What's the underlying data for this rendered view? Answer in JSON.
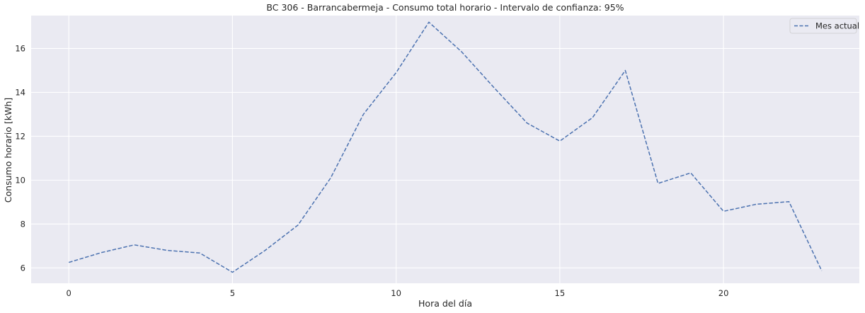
{
  "chart_data": {
    "type": "line",
    "title": "BC 306 - Barrancabermeja - Consumo total horario - Intervalo de confianza: 95%",
    "xlabel": "Hora del día",
    "ylabel": "Consumo horario [kWh]",
    "xlim": [
      -1.15,
      24.15
    ],
    "ylim": [
      5.3,
      17.5
    ],
    "xticks": [
      0,
      5,
      10,
      15,
      20
    ],
    "yticks": [
      6,
      8,
      10,
      12,
      14,
      16
    ],
    "grid": true,
    "legend_position": "top-right",
    "background": "#eaeaf2",
    "series": [
      {
        "name": "Mes actual",
        "color": "#4c72b0",
        "line_style": "dashed",
        "x": [
          0,
          1,
          2,
          3,
          4,
          5,
          6,
          7,
          8,
          9,
          10,
          11,
          12,
          13,
          14,
          15,
          16,
          17,
          18,
          19,
          20,
          21,
          22,
          23
        ],
        "y": [
          6.25,
          6.7,
          7.05,
          6.8,
          6.68,
          5.8,
          6.8,
          7.95,
          10.1,
          13.0,
          14.9,
          17.2,
          15.85,
          14.2,
          12.6,
          11.78,
          12.85,
          15.0,
          9.85,
          10.33,
          8.58,
          8.9,
          9.02,
          5.87
        ]
      }
    ]
  }
}
